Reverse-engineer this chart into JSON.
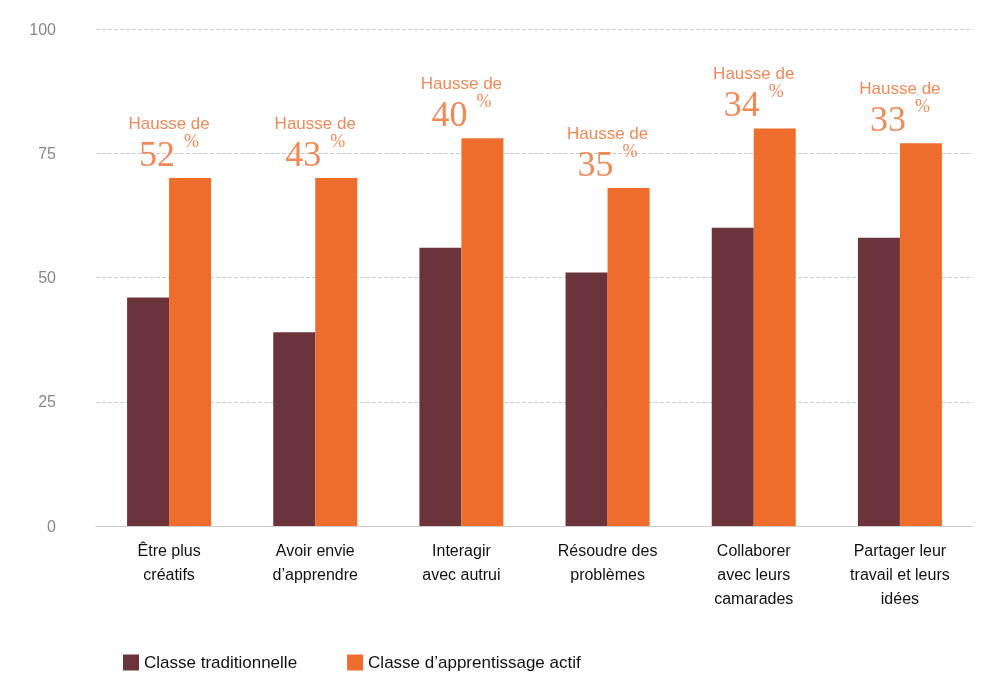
{
  "chart_data": {
    "type": "bar",
    "categories": [
      "Être plus\ncréatifs",
      "Avoir envie\nd’apprendre",
      "Interagir\navec autrui",
      "Résoudre des\nproblèmes",
      "Collaborer\navec leurs\ncamarades",
      "Partager leur\ntravail et leurs\nidées"
    ],
    "series": [
      {
        "name": "Classe traditionnelle",
        "color": "#6b333a",
        "values": [
          46,
          39,
          56,
          51,
          60,
          58
        ]
      },
      {
        "name": "Classe d’apprentissage actif",
        "color": "#ee6c2c",
        "values": [
          70,
          70,
          78,
          68,
          80,
          77
        ]
      }
    ],
    "annotations": [
      {
        "text": "Hausse de\n52 %",
        "x": "Être plus\ncréatifs",
        "y": 70
      },
      {
        "text": "Hausse de\n43 %",
        "x": "Avoir envie\nd’apprendre",
        "y": 70
      },
      {
        "text": "Hausse de\n40 %",
        "x": "Interagir\navec autrui",
        "y": 78
      },
      {
        "text": "Hausse de\n35 %",
        "x": "Résoudre des\nproblèmes",
        "y": 68
      },
      {
        "text": "Hausse de\n34 %",
        "x": "Collaborer\navec leurs\ncamarades",
        "y": 80
      },
      {
        "text": "Hausse de\n33 %",
        "x": "Partager leur\ntravail et leurs\nidées",
        "y": 77
      }
    ],
    "ylim": [
      0,
      100
    ],
    "yticks": [
      0,
      25,
      50,
      75,
      100
    ],
    "grid": "y",
    "legend": "bottom left"
  }
}
